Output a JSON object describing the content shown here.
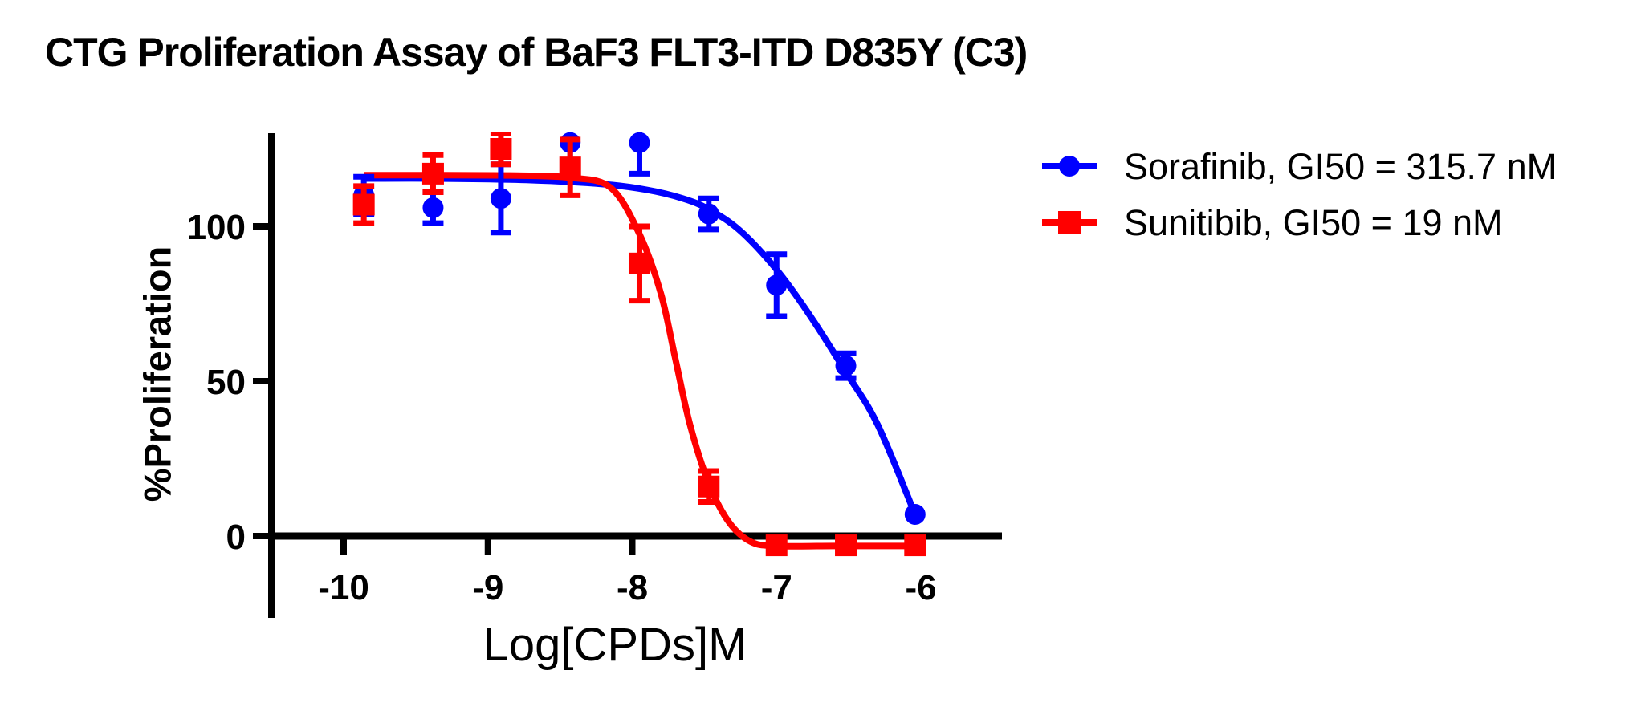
{
  "title": "CTG Proliferation Assay of BaF3 FLT3-ITD D835Y (C3)",
  "axes": {
    "x_label": "Log[CPDs]M",
    "y_label": "%Proliferation",
    "x_ticks": [
      -10,
      -9,
      -8,
      -7,
      -6
    ],
    "y_ticks": [
      0,
      50,
      100
    ]
  },
  "colors": {
    "sorafinib": "#0000ff",
    "sunitibib": "#ff0000",
    "axis": "#000000",
    "background": "#ffffff"
  },
  "legend": [
    {
      "label": "Sorafinib,  GI50 = 315.7 nM",
      "color": "#0000ff",
      "marker": "circle"
    },
    {
      "label": "Sunitibib,  GI50 = 19 nM",
      "color": "#ff0000",
      "marker": "square"
    }
  ],
  "chart_data": {
    "type": "line",
    "title": "CTG Proliferation Assay of BaF3 FLT3-ITD D835Y (C3)",
    "xlabel": "Log[CPDs]M",
    "ylabel": "%Proliferation",
    "xlim": [
      -10.5,
      -5.45
    ],
    "ylim": [
      -26,
      130
    ],
    "xticks": [
      -10,
      -9,
      -8,
      -7,
      -6
    ],
    "yticks": [
      0,
      50,
      100
    ],
    "grid": false,
    "legend_position": "right-top",
    "series": [
      {
        "name": "Sorafinib",
        "gi50": "315.7 nM",
        "legend_label": "Sorafinib,  GI50 = 315.7 nM",
        "color": "#0000ff",
        "marker": "circle",
        "points": [
          {
            "x": -9.86,
            "y": 110,
            "err": 6
          },
          {
            "x": -9.38,
            "y": 106,
            "err": 5
          },
          {
            "x": -8.91,
            "y": 109,
            "err": 11
          },
          {
            "x": -8.43,
            "y": 127,
            "err": 8
          },
          {
            "x": -7.95,
            "y": 127,
            "err": 10
          },
          {
            "x": -7.47,
            "y": 104,
            "err": 5
          },
          {
            "x": -7.0,
            "y": 81,
            "err": 10
          },
          {
            "x": -6.52,
            "y": 55,
            "err": 4
          },
          {
            "x": -6.04,
            "y": 7,
            "err": 0
          }
        ],
        "fit_curve": [
          [
            -9.86,
            115.4
          ],
          [
            -9.3,
            115.4
          ],
          [
            -8.7,
            114.9
          ],
          [
            -8.2,
            113.6
          ],
          [
            -7.9,
            111.8
          ],
          [
            -7.65,
            109.0
          ],
          [
            -7.47,
            105.5
          ],
          [
            -7.25,
            98.5
          ],
          [
            -7.0,
            86.0
          ],
          [
            -6.78,
            72.0
          ],
          [
            -6.52,
            53.0
          ],
          [
            -6.3,
            36.0
          ],
          [
            -6.04,
            7.0
          ]
        ]
      },
      {
        "name": "Sunitibib",
        "gi50": "19 nM",
        "legend_label": "Sunitibib,  GI50 = 19 nM",
        "color": "#ff0000",
        "marker": "square",
        "points": [
          {
            "x": -9.86,
            "y": 107,
            "err": 6
          },
          {
            "x": -9.38,
            "y": 117,
            "err": 6
          },
          {
            "x": -8.91,
            "y": 125,
            "err": 5
          },
          {
            "x": -8.43,
            "y": 119,
            "err": 9
          },
          {
            "x": -7.95,
            "y": 88,
            "err": 12
          },
          {
            "x": -7.47,
            "y": 16,
            "err": 5
          },
          {
            "x": -7.0,
            "y": -3,
            "err": 0
          },
          {
            "x": -6.52,
            "y": -3,
            "err": 0
          },
          {
            "x": -6.04,
            "y": -3,
            "err": 0
          }
        ],
        "fit_curve": [
          [
            -9.86,
            116.5
          ],
          [
            -9.3,
            116.5
          ],
          [
            -8.8,
            116.4
          ],
          [
            -8.43,
            115.7
          ],
          [
            -8.15,
            112.5
          ],
          [
            -7.95,
            97.5
          ],
          [
            -7.8,
            78.0
          ],
          [
            -7.7,
            57.0
          ],
          [
            -7.6,
            36.0
          ],
          [
            -7.47,
            17.0
          ],
          [
            -7.33,
            4.5
          ],
          [
            -7.18,
            -1.8
          ],
          [
            -7.0,
            -3.2
          ],
          [
            -6.6,
            -3.2
          ],
          [
            -6.04,
            -3.2
          ]
        ]
      }
    ]
  }
}
